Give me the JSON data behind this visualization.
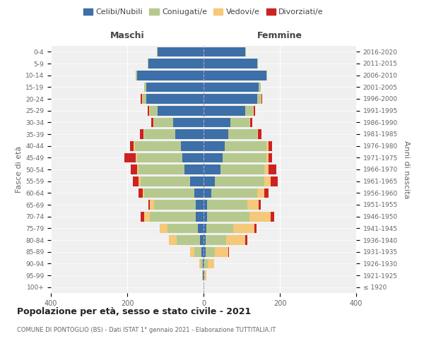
{
  "age_groups": [
    "100+",
    "95-99",
    "90-94",
    "85-89",
    "80-84",
    "75-79",
    "70-74",
    "65-69",
    "60-64",
    "55-59",
    "50-54",
    "45-49",
    "40-44",
    "35-39",
    "30-34",
    "25-29",
    "20-24",
    "15-19",
    "10-14",
    "5-9",
    "0-4"
  ],
  "birth_years": [
    "≤ 1920",
    "1921-1925",
    "1926-1930",
    "1931-1935",
    "1936-1940",
    "1941-1945",
    "1946-1950",
    "1951-1955",
    "1956-1960",
    "1961-1965",
    "1966-1970",
    "1971-1975",
    "1976-1980",
    "1981-1985",
    "1986-1990",
    "1991-1995",
    "1996-2000",
    "2001-2005",
    "2006-2010",
    "2011-2015",
    "2016-2020"
  ],
  "maschi": {
    "celibi": [
      0,
      1,
      2,
      5,
      10,
      15,
      20,
      20,
      25,
      35,
      50,
      55,
      60,
      75,
      80,
      120,
      150,
      150,
      175,
      145,
      120
    ],
    "coniugati": [
      0,
      1,
      5,
      20,
      60,
      80,
      120,
      110,
      130,
      130,
      120,
      120,
      120,
      80,
      50,
      20,
      10,
      5,
      2,
      2,
      2
    ],
    "vedovi": [
      0,
      1,
      5,
      10,
      20,
      20,
      15,
      10,
      5,
      5,
      5,
      3,
      3,
      2,
      2,
      2,
      2,
      0,
      0,
      0,
      0
    ],
    "divorziati": [
      0,
      0,
      0,
      0,
      0,
      0,
      10,
      5,
      10,
      15,
      15,
      30,
      10,
      10,
      5,
      5,
      2,
      0,
      0,
      0,
      0
    ]
  },
  "femmine": {
    "nubili": [
      0,
      1,
      2,
      5,
      5,
      8,
      10,
      10,
      20,
      30,
      45,
      50,
      55,
      65,
      70,
      110,
      140,
      145,
      165,
      140,
      110
    ],
    "coniugate": [
      0,
      2,
      10,
      25,
      55,
      70,
      110,
      105,
      120,
      130,
      115,
      115,
      110,
      75,
      50,
      20,
      10,
      5,
      2,
      2,
      2
    ],
    "vedove": [
      1,
      5,
      15,
      35,
      50,
      55,
      55,
      30,
      20,
      15,
      10,
      5,
      5,
      3,
      3,
      2,
      2,
      0,
      0,
      0,
      0
    ],
    "divorziate": [
      0,
      0,
      0,
      2,
      5,
      5,
      10,
      5,
      10,
      20,
      20,
      10,
      10,
      8,
      5,
      3,
      2,
      0,
      0,
      0,
      0
    ]
  },
  "colors": {
    "celibi": "#3d6fa8",
    "coniugati": "#b5c98e",
    "vedovi": "#f5c87a",
    "divorziati": "#cc2222"
  },
  "title": "Popolazione per età, sesso e stato civile - 2021",
  "subtitle": "COMUNE DI PONTOGLIO (BS) - Dati ISTAT 1° gennaio 2021 - Elaborazione TUTTITALIA.IT",
  "xlabel_left": "Maschi",
  "xlabel_right": "Femmine",
  "ylabel_left": "Fasce di età",
  "ylabel_right": "Anni di nascita",
  "xlim": 400,
  "legend_labels": [
    "Celibi/Nubili",
    "Coniugati/e",
    "Vedovi/e",
    "Divorziati/e"
  ],
  "background_color": "#ffffff",
  "ax_bg": "#f0f0f0"
}
